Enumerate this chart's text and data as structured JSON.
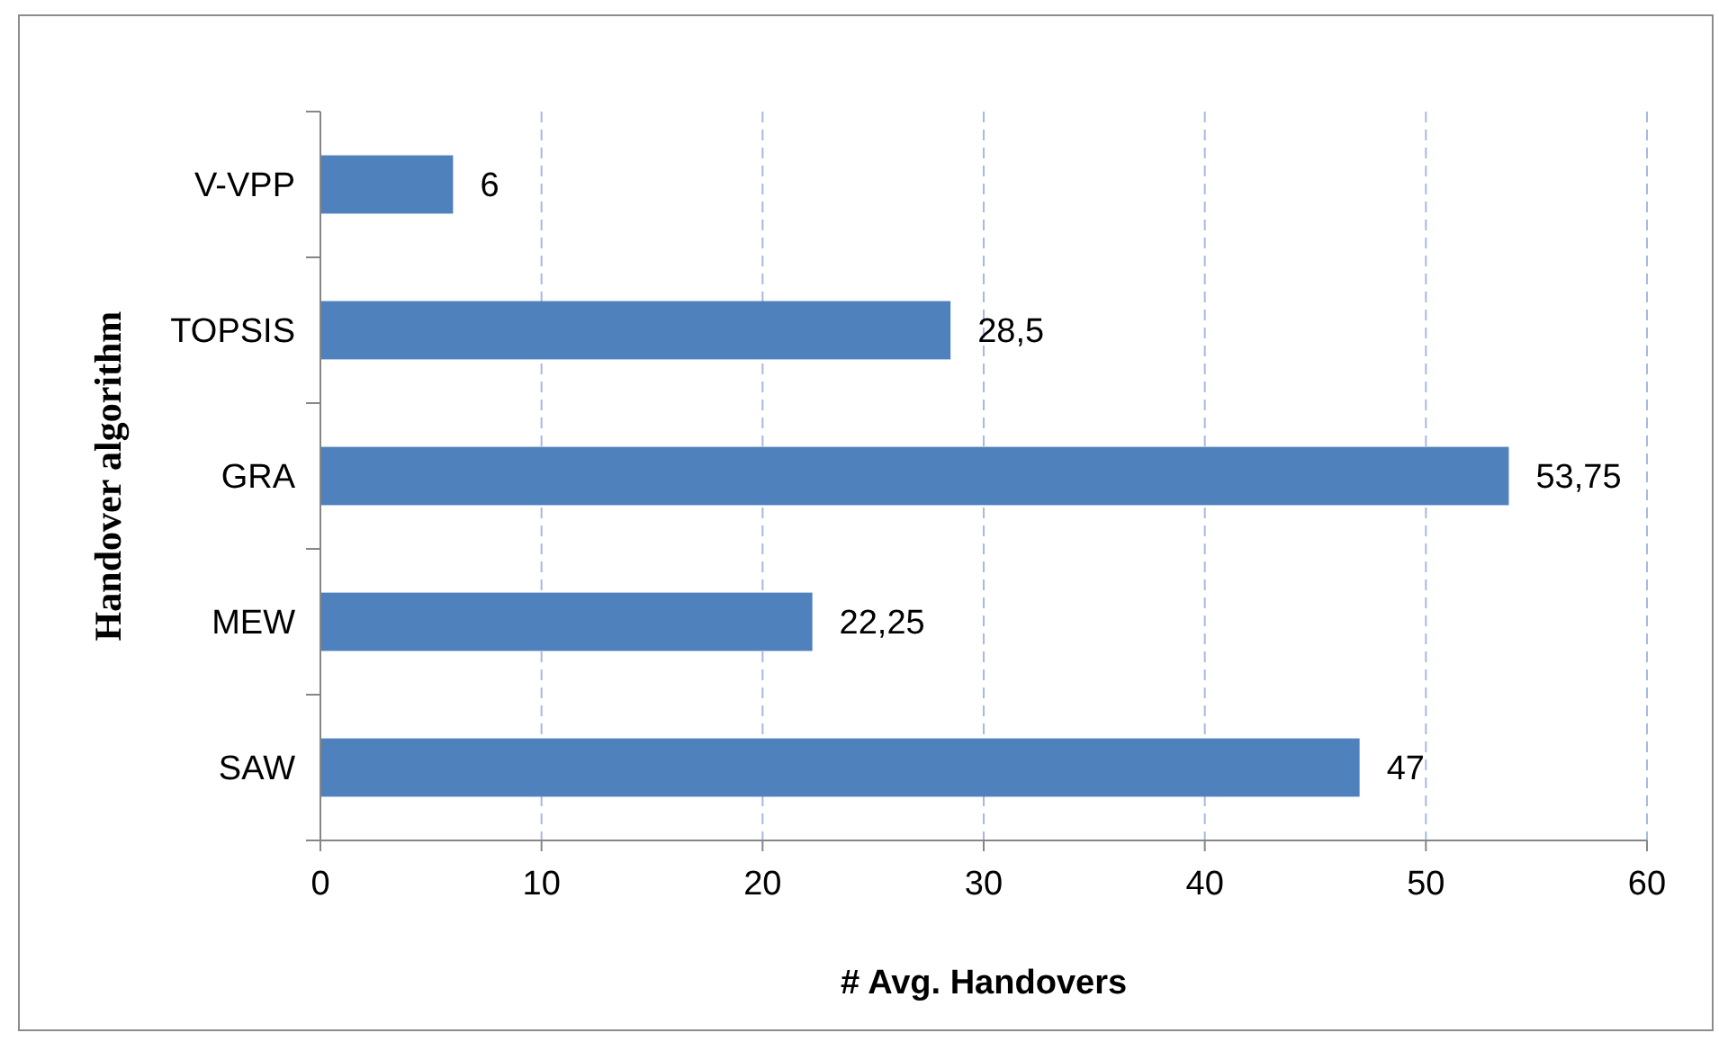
{
  "chart_data": {
    "type": "bar",
    "orientation": "horizontal",
    "xlabel": "# Avg. Handovers",
    "ylabel": "Handover algorithm",
    "categories": [
      "V-VPP",
      "TOPSIS",
      "GRA",
      "MEW",
      "SAW"
    ],
    "values": [
      6,
      28.5,
      53.75,
      22.25,
      47
    ],
    "value_labels": [
      "6",
      "28,5",
      "53,75",
      "22,25",
      "47"
    ],
    "color": "#4f81bd",
    "xlim": [
      0,
      60
    ],
    "xticks": [
      0,
      10,
      20,
      30,
      40,
      50,
      60
    ],
    "grid": "x"
  }
}
